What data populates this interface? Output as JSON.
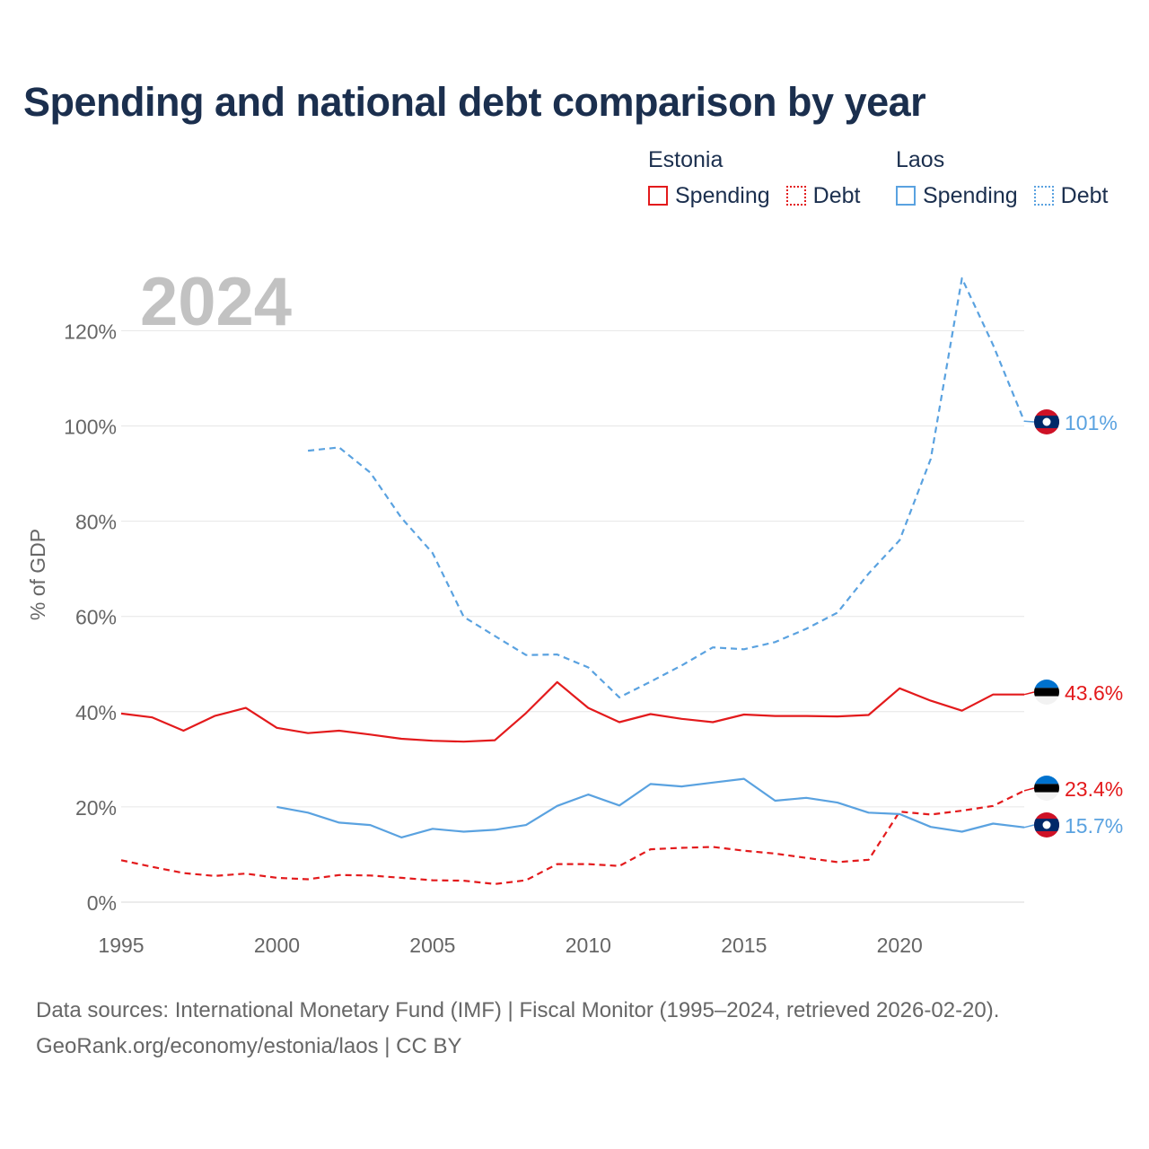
{
  "title": "Spending and national debt comparison by year",
  "legend": {
    "groups": [
      {
        "name": "Estonia",
        "items": [
          {
            "label": "Spending",
            "style": "solid"
          },
          {
            "label": "Debt",
            "style": "dotted"
          }
        ],
        "color": "#e31a1c"
      },
      {
        "name": "Laos",
        "items": [
          {
            "label": "Spending",
            "style": "solid"
          },
          {
            "label": "Debt",
            "style": "dotted"
          }
        ],
        "color": "#5aa2e0"
      }
    ]
  },
  "colors": {
    "estonia": "#e31a1c",
    "laos": "#5aa2e0",
    "year_label": "#c2c2c2",
    "axis_text": "#666666",
    "grid": "#e6e6e6"
  },
  "chart_data": {
    "type": "line",
    "year_label": "2024",
    "ylabel": "% of GDP",
    "xlabel": "",
    "xlim": [
      1995,
      2024
    ],
    "ylim": [
      0,
      130
    ],
    "x_ticks": [
      1995,
      2000,
      2005,
      2010,
      2015,
      2020
    ],
    "y_ticks": [
      0,
      20,
      40,
      60,
      80,
      100,
      120
    ],
    "y_tick_labels": [
      "0%",
      "20%",
      "40%",
      "60%",
      "80%",
      "100%",
      "120%"
    ],
    "series": [
      {
        "name": "Estonia Spending",
        "country": "Estonia",
        "color": "#e31a1c",
        "dash": "solid",
        "end_label": "43.6%",
        "flag": "estonia",
        "x": [
          1995,
          1996,
          1997,
          1998,
          1999,
          2000,
          2001,
          2002,
          2003,
          2004,
          2005,
          2006,
          2007,
          2008,
          2009,
          2010,
          2011,
          2012,
          2013,
          2014,
          2015,
          2016,
          2017,
          2018,
          2019,
          2020,
          2021,
          2022,
          2023,
          2024
        ],
        "values": [
          39.6,
          38.8,
          36.0,
          39.1,
          40.8,
          36.6,
          35.5,
          36.0,
          35.2,
          34.3,
          33.9,
          33.7,
          34.0,
          39.7,
          46.2,
          40.8,
          37.8,
          39.5,
          38.5,
          37.8,
          39.4,
          39.1,
          39.1,
          39.0,
          39.3,
          44.9,
          42.3,
          40.2,
          43.6,
          43.6
        ]
      },
      {
        "name": "Estonia Debt",
        "country": "Estonia",
        "color": "#e31a1c",
        "dash": "dashed",
        "end_label": "23.4%",
        "flag": "estonia",
        "x": [
          1995,
          1996,
          1997,
          1998,
          1999,
          2000,
          2001,
          2002,
          2003,
          2004,
          2005,
          2006,
          2007,
          2008,
          2009,
          2010,
          2011,
          2012,
          2013,
          2014,
          2015,
          2016,
          2017,
          2018,
          2019,
          2020,
          2021,
          2022,
          2023,
          2024
        ],
        "values": [
          8.8,
          7.4,
          6.1,
          5.5,
          6.0,
          5.1,
          4.8,
          5.7,
          5.6,
          5.1,
          4.6,
          4.5,
          3.8,
          4.6,
          8.0,
          8.0,
          7.6,
          11.1,
          11.4,
          11.6,
          10.8,
          10.2,
          9.3,
          8.4,
          8.9,
          19.0,
          18.4,
          19.2,
          20.2,
          23.4
        ]
      },
      {
        "name": "Laos Spending",
        "country": "Laos",
        "color": "#5aa2e0",
        "dash": "solid",
        "end_label": "15.7%",
        "flag": "laos",
        "x": [
          2000,
          2001,
          2002,
          2003,
          2004,
          2005,
          2006,
          2007,
          2008,
          2009,
          2010,
          2011,
          2012,
          2013,
          2014,
          2015,
          2016,
          2017,
          2018,
          2019,
          2020,
          2021,
          2022,
          2023,
          2024
        ],
        "values": [
          20.0,
          18.8,
          16.7,
          16.2,
          13.6,
          15.4,
          14.8,
          15.2,
          16.2,
          20.2,
          22.6,
          20.3,
          24.8,
          24.3,
          25.1,
          25.9,
          21.3,
          21.9,
          20.9,
          18.8,
          18.5,
          15.8,
          14.8,
          16.5,
          15.7
        ]
      },
      {
        "name": "Laos Debt",
        "country": "Laos",
        "color": "#5aa2e0",
        "dash": "dashed",
        "end_label": "101%",
        "flag": "laos",
        "x": [
          2001,
          2002,
          2003,
          2004,
          2005,
          2006,
          2007,
          2008,
          2009,
          2010,
          2011,
          2012,
          2013,
          2014,
          2015,
          2016,
          2017,
          2018,
          2019,
          2020,
          2021,
          2022,
          2023,
          2024
        ],
        "values": [
          94.8,
          95.5,
          90.2,
          80.7,
          73.3,
          59.9,
          55.9,
          51.9,
          52.0,
          49.3,
          43.0,
          46.3,
          49.7,
          53.5,
          53.1,
          54.6,
          57.4,
          60.8,
          69.0,
          76.0,
          93.1,
          131.0,
          117.0,
          101.0
        ]
      }
    ]
  },
  "footer": {
    "source": "Data sources: International Monetary Fund (IMF) | Fiscal Monitor (1995–2024, retrieved 2026-02-20).",
    "credit": "GeoRank.org/economy/estonia/laos | CC BY"
  }
}
